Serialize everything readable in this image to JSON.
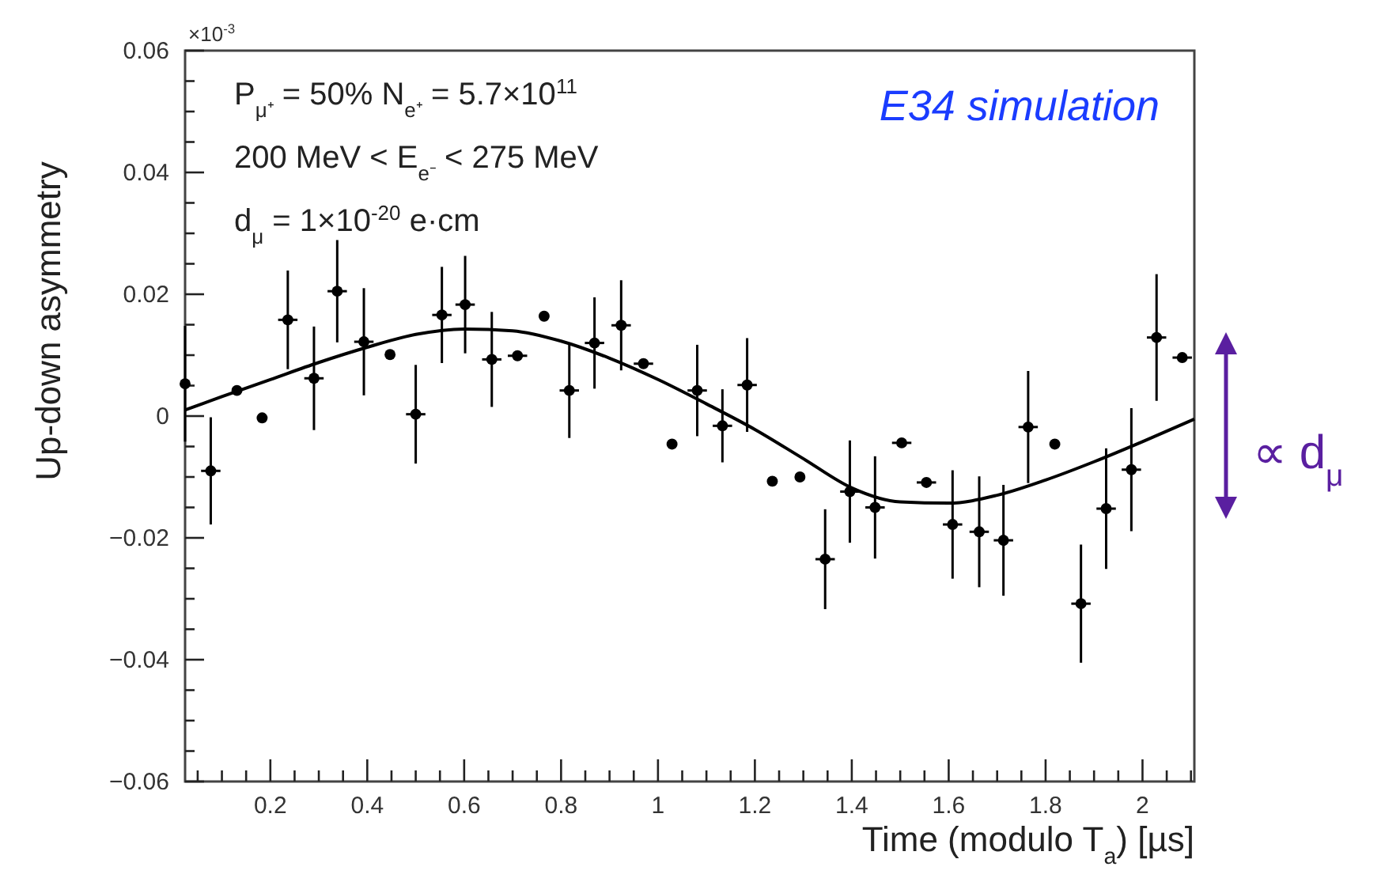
{
  "chart_data": {
    "type": "scatter",
    "xlabel": "Time (modulo T$_{a}$) [µs]",
    "ylabel": "Up-down asymmetry",
    "xlim": [
      0.024,
      2.107
    ],
    "ylim": [
      -0.06,
      0.06
    ],
    "xticks": [
      {
        "value": 0.05,
        "label": null
      },
      {
        "value": 0.1,
        "label": null
      },
      {
        "value": 0.15,
        "label": null
      },
      0.2,
      {
        "value": 0.25,
        "label": null
      },
      {
        "value": 0.3,
        "label": null
      },
      {
        "value": 0.35,
        "label": null
      },
      0.4,
      {
        "value": 0.45,
        "label": null
      },
      {
        "value": 0.5,
        "label": null
      },
      {
        "value": 0.55,
        "label": null
      },
      0.6,
      {
        "value": 0.65,
        "label": null
      },
      {
        "value": 0.7,
        "label": null
      },
      {
        "value": 0.75,
        "label": null
      },
      0.8,
      {
        "value": 0.85,
        "label": null
      },
      {
        "value": 0.9,
        "label": null
      },
      {
        "value": 0.95,
        "label": null
      },
      1,
      {
        "value": 1.05,
        "label": null
      },
      {
        "value": 1.1,
        "label": null
      },
      {
        "value": 1.15,
        "label": null
      },
      1.2,
      {
        "value": 1.25,
        "label": null
      },
      {
        "value": 1.3,
        "label": null
      },
      {
        "value": 1.35,
        "label": null
      },
      1.4,
      {
        "value": 1.45,
        "label": null
      },
      {
        "value": 1.5,
        "label": null
      },
      {
        "value": 1.55,
        "label": null
      },
      1.6,
      {
        "value": 1.65,
        "label": null
      },
      {
        "value": 1.7,
        "label": null
      },
      {
        "value": 1.75,
        "label": null
      },
      1.8,
      {
        "value": 1.85,
        "label": null
      },
      {
        "value": 1.9,
        "label": null
      },
      {
        "value": 1.95,
        "label": null
      },
      2,
      {
        "value": 2.05,
        "label": null
      },
      {
        "value": 2.1,
        "label": null
      }
    ],
    "yticks": [
      {
        "value": -0.06,
        "label": "−0.06"
      },
      {
        "value": -0.055,
        "label": null
      },
      {
        "value": -0.05,
        "label": null
      },
      {
        "value": -0.045,
        "label": null
      },
      {
        "value": -0.04,
        "label": "−0.04"
      },
      {
        "value": -0.035,
        "label": null
      },
      {
        "value": -0.03,
        "label": null
      },
      {
        "value": -0.025,
        "label": null
      },
      {
        "value": -0.02,
        "label": "−0.02"
      },
      {
        "value": -0.015,
        "label": null
      },
      {
        "value": -0.01,
        "label": null
      },
      {
        "value": -0.005,
        "label": null
      },
      0,
      {
        "value": 0.005,
        "label": null
      },
      {
        "value": 0.01,
        "label": null
      },
      {
        "value": 0.015,
        "label": null
      },
      0.02,
      {
        "value": 0.025,
        "label": null
      },
      {
        "value": 0.03,
        "label": null
      },
      {
        "value": 0.035,
        "label": null
      },
      0.04,
      {
        "value": 0.045,
        "label": null
      },
      {
        "value": 0.05,
        "label": null
      },
      {
        "value": 0.055,
        "label": null
      },
      0.06
    ],
    "series": [
      {
        "color": "#000000",
        "marker": "circle",
        "x": [
          0.024,
          0.077,
          0.131,
          0.183,
          0.236,
          0.29,
          0.338,
          0.393,
          0.447,
          0.5,
          0.554,
          0.602,
          0.657,
          0.71,
          0.765,
          0.817,
          0.869,
          0.924,
          0.97,
          1.029,
          1.081,
          1.133,
          1.184,
          1.236,
          1.293,
          1.345,
          1.396,
          1.448,
          1.503,
          1.554,
          1.608,
          1.663,
          1.713,
          1.764,
          1.819,
          1.873,
          1.925,
          1.977,
          2.029,
          2.082
        ],
        "values": [
          0.0053,
          -0.009,
          0.0042,
          -0.0003,
          0.0158,
          0.0062,
          0.0205,
          0.0122,
          0.0101,
          0.0003,
          0.0166,
          0.0183,
          0.0093,
          0.0099,
          0.0164,
          0.0042,
          0.012,
          0.0149,
          0.0086,
          -0.0046,
          0.0042,
          -0.0016,
          0.0051,
          -0.0107,
          -0.01,
          -0.0235,
          -0.0124,
          -0.015,
          -0.0044,
          -0.0109,
          -0.0178,
          -0.019,
          -0.0204,
          -0.0018,
          -0.0046,
          -0.0308,
          -0.0152,
          -0.0088,
          0.0129,
          0.0096
        ],
        "errors": [
          0.0095,
          0.0088,
          null,
          null,
          0.0081,
          0.0085,
          0.0084,
          0.0088,
          null,
          0.0081,
          0.0079,
          0.008,
          0.0078,
          null,
          null,
          0.0078,
          0.0075,
          0.0074,
          null,
          null,
          0.0075,
          0.006,
          0.0077,
          null,
          null,
          0.0082,
          0.0084,
          0.0084,
          null,
          null,
          0.0089,
          0.0091,
          0.0091,
          0.0092,
          null,
          0.0097,
          0.0099,
          0.0101,
          0.0104,
          null
        ],
        "xerrors": [
          null,
          0.02,
          null,
          null,
          0.02,
          0.02,
          0.02,
          0.02,
          null,
          0.02,
          0.02,
          0.02,
          0.02,
          0.02,
          null,
          0.02,
          0.02,
          0.02,
          0.02,
          null,
          0.02,
          0.02,
          0.02,
          null,
          null,
          0.02,
          0.02,
          0.02,
          0.02,
          0.02,
          0.02,
          0.02,
          0.02,
          0.02,
          null,
          0.02,
          0.02,
          0.02,
          0.02,
          0.02
        ]
      },
      {
        "type": "line",
        "color": "#000000",
        "marker": "none",
        "line_style": "solid",
        "x": [
          0.024,
          0.1,
          0.2,
          0.3,
          0.4,
          0.5,
          0.6,
          0.7,
          0.8,
          0.9,
          1.0,
          1.1,
          1.2,
          1.3,
          1.4,
          1.5,
          1.6,
          1.7,
          1.8,
          1.9,
          2.0,
          2.107
        ],
        "values": [
          0.001,
          0.0032,
          0.006,
          0.0088,
          0.0113,
          0.0134,
          0.0143,
          0.014,
          0.0123,
          0.0095,
          0.006,
          0.002,
          -0.0022,
          -0.007,
          -0.0118,
          -0.0141,
          -0.0143,
          -0.013,
          -0.0105,
          -0.0075,
          -0.0042,
          -0.0005
        ]
      }
    ],
    "annotations": [
      "×10$^{-3}$",
      "P$_{μ⁺}$ = 50%  N$_{e⁺}$ = 5.7×10$^{11}$",
      "200 MeV < E$_{e⁻}$ < 275 MeV",
      "d$_{μ}$ = 1×10$^{-20}$ e·cm",
      "E34 simulation",
      "∝ d$_{μ}$"
    ]
  }
}
